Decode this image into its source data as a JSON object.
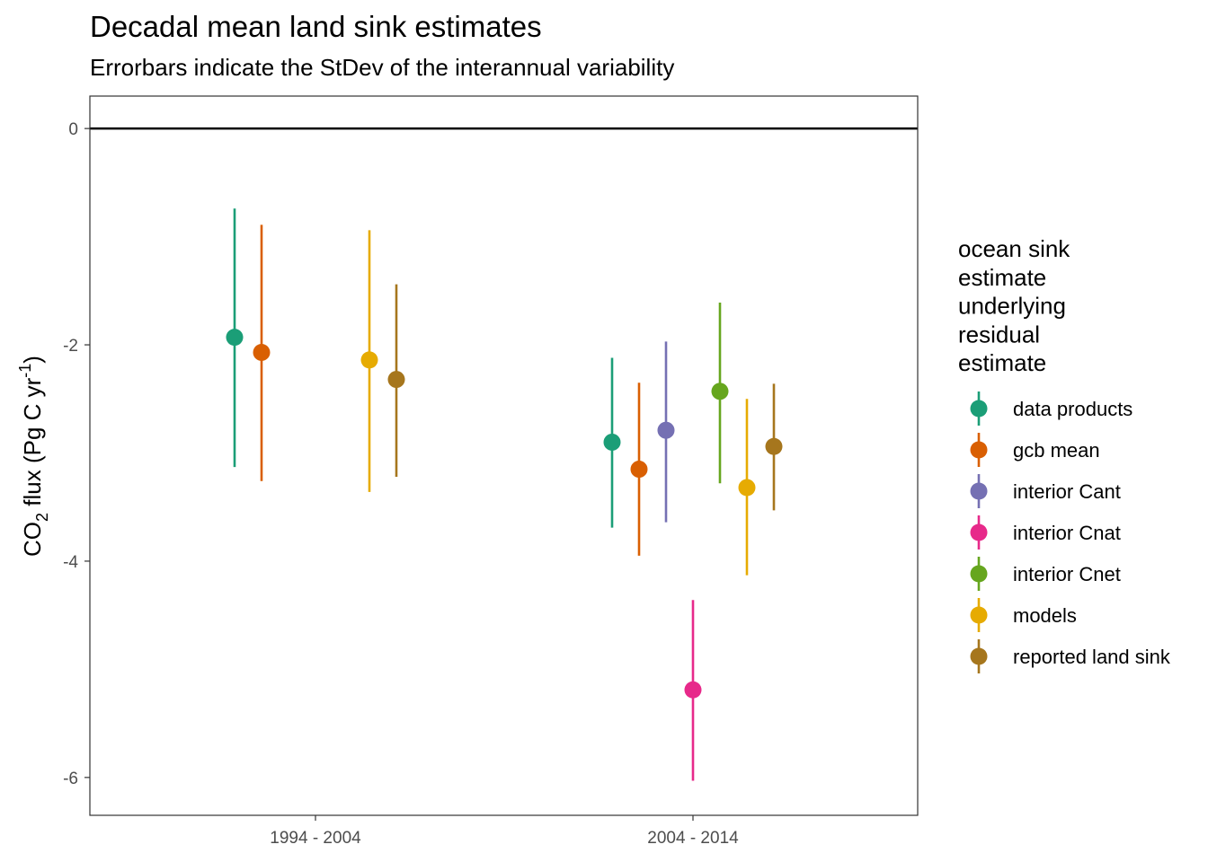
{
  "chart_data": {
    "type": "errorbar",
    "title": "Decadal mean land sink estimates",
    "subtitle": "Errorbars indicate the StDev of the interannual variability",
    "ylabel": "CO2 flux (Pg C yr-1)",
    "ylabel_parts": {
      "main": "CO",
      "sub": "2",
      "mid": " flux (Pg C yr",
      "sup": "-1",
      "end": ")"
    },
    "xlabel": "",
    "ylim": [
      -6.35,
      0.3
    ],
    "yticks": [
      0,
      -2,
      -4,
      -6
    ],
    "ytick_labels": [
      "0",
      "-2",
      "-4",
      "-6"
    ],
    "hline": 0,
    "categories": [
      "1994 - 2004",
      "2004 - 2014"
    ],
    "legend": {
      "title_lines": [
        "ocean sink",
        "estimate",
        "underlying",
        "residual",
        "estimate"
      ],
      "position": "right"
    },
    "series": [
      {
        "name": "data products",
        "color": "#1B9E77",
        "points": [
          {
            "cat": 0,
            "y": -1.93,
            "lo": -3.13,
            "hi": -0.74
          },
          {
            "cat": 1,
            "y": -2.9,
            "lo": -3.69,
            "hi": -2.12
          }
        ]
      },
      {
        "name": "gcb mean",
        "color": "#D95F02",
        "points": [
          {
            "cat": 0,
            "y": -2.07,
            "lo": -3.26,
            "hi": -0.89
          },
          {
            "cat": 1,
            "y": -3.15,
            "lo": -3.95,
            "hi": -2.35
          }
        ]
      },
      {
        "name": "interior Cant",
        "color": "#7570B3",
        "points": [
          {
            "cat": 1,
            "y": -2.79,
            "lo": -3.64,
            "hi": -1.97
          }
        ]
      },
      {
        "name": "interior Cnat",
        "color": "#E7298A",
        "points": [
          {
            "cat": 1,
            "y": -5.19,
            "lo": -6.03,
            "hi": -4.36
          }
        ]
      },
      {
        "name": "interior Cnet",
        "color": "#66A61E",
        "points": [
          {
            "cat": 1,
            "y": -2.43,
            "lo": -3.28,
            "hi": -1.61
          }
        ]
      },
      {
        "name": "models",
        "color": "#E6AB02",
        "points": [
          {
            "cat": 0,
            "y": -2.14,
            "lo": -3.36,
            "hi": -0.94
          },
          {
            "cat": 1,
            "y": -3.32,
            "lo": -4.13,
            "hi": -2.5
          }
        ]
      },
      {
        "name": "reported land sink",
        "color": "#A6761D",
        "points": [
          {
            "cat": 0,
            "y": -2.32,
            "lo": -3.22,
            "hi": -1.44
          },
          {
            "cat": 1,
            "y": -2.94,
            "lo": -3.53,
            "hi": -2.36
          }
        ]
      }
    ]
  }
}
